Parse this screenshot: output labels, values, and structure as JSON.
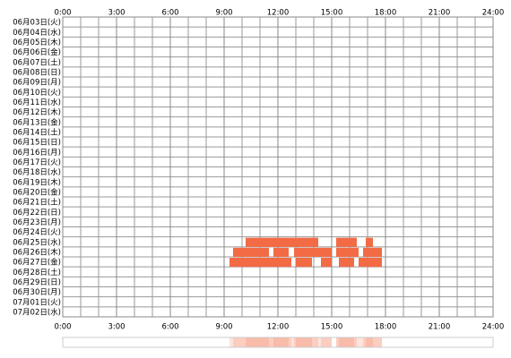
{
  "chart_data": {
    "type": "timeline",
    "categories": [
      "06月03日(火)",
      "06月04日(水)",
      "06月05日(木)",
      "06月06日(金)",
      "06月07日(土)",
      "06月08日(日)",
      "06月09日(月)",
      "06月10日(火)",
      "06月11日(水)",
      "06月12日(木)",
      "06月13日(金)",
      "06月14日(土)",
      "06月15日(日)",
      "06月16日(月)",
      "06月17日(火)",
      "06月18日(水)",
      "06月19日(木)",
      "06月20日(金)",
      "06月21日(土)",
      "06月22日(日)",
      "06月23日(月)",
      "06月24日(火)",
      "06月25日(水)",
      "06月26日(木)",
      "06月27日(金)",
      "06月28日(土)",
      "06月29日(日)",
      "06月30日(月)",
      "07月01日(火)",
      "07月02日(水)"
    ],
    "values": [
      [],
      [],
      [],
      [],
      [],
      [],
      [],
      [],
      [],
      [],
      [],
      [],
      [],
      [],
      [],
      [],
      [],
      [],
      [],
      [],
      [],
      [],
      [
        [
          10.2,
          14.25
        ],
        [
          15.25,
          16.4
        ],
        [
          16.9,
          17.3
        ]
      ],
      [
        [
          9.5,
          11.5
        ],
        [
          11.75,
          12.6
        ],
        [
          12.9,
          15.0
        ],
        [
          15.25,
          16.5
        ],
        [
          16.75,
          17.8
        ]
      ],
      [
        [
          9.3,
          12.75
        ],
        [
          13.0,
          13.9
        ],
        [
          14.4,
          15.0
        ],
        [
          15.4,
          16.25
        ],
        [
          16.5,
          17.8
        ]
      ],
      [],
      [],
      [],
      [],
      []
    ],
    "color": "#f26b45",
    "xlim": [
      0,
      24
    ],
    "xticks": [
      {
        "value": 0,
        "label": "0:00"
      },
      {
        "value": 3,
        "label": "3:00"
      },
      {
        "value": 6,
        "label": "6:00"
      },
      {
        "value": 9,
        "label": "9:00"
      },
      {
        "value": 12,
        "label": "12:00"
      },
      {
        "value": 15,
        "label": "15:00"
      },
      {
        "value": 18,
        "label": "18:00"
      },
      {
        "value": 21,
        "label": "21:00"
      },
      {
        "value": 24,
        "label": "24:00"
      }
    ],
    "minor_grid": true
  }
}
